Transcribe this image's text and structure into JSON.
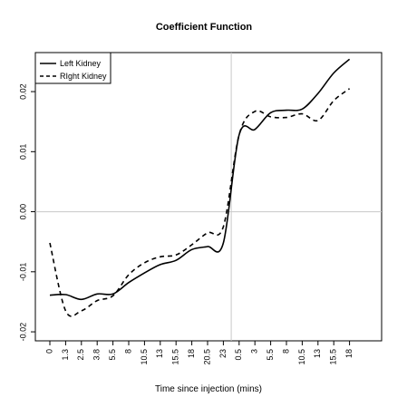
{
  "chart_data": {
    "type": "line",
    "title": "Coefficient Function",
    "xlabel": "Time since injection (mins)",
    "ylabel": "",
    "x_tick_labels": [
      "0",
      "1.3",
      "2.5",
      "3.8",
      "5.5",
      "8",
      "10.5",
      "13",
      "15.5",
      "18",
      "20.5",
      "23",
      "0.5",
      "3",
      "5.5",
      "8",
      "10.5",
      "13",
      "15.5",
      "18"
    ],
    "y_ticks": [
      -0.02,
      -0.01,
      0.0,
      0.01,
      0.02
    ],
    "y_tick_labels": [
      "-0.02",
      "-0.01",
      "0.00",
      "0.01",
      "0.02"
    ],
    "ylim": [
      -0.0215,
      0.0265
    ],
    "grid": false,
    "reference_lines": {
      "horizontal_y": 0.0,
      "vertical_after_tick_index": 11.5
    },
    "legend": {
      "position": "top-left"
    },
    "series": [
      {
        "name": "Left Kidney",
        "style": "solid",
        "values": [
          -0.0139,
          -0.0138,
          -0.0146,
          -0.0137,
          -0.0137,
          -0.0118,
          -0.0102,
          -0.0088,
          -0.0081,
          -0.0063,
          -0.0058,
          -0.0052,
          0.0128,
          0.0137,
          0.0165,
          0.0169,
          0.0171,
          0.0197,
          0.0231,
          0.0254
        ]
      },
      {
        "name": "RIght Kidney",
        "style": "dashed",
        "values": [
          -0.0052,
          -0.0165,
          -0.0165,
          -0.0148,
          -0.014,
          -0.0105,
          -0.0085,
          -0.0075,
          -0.0072,
          -0.0055,
          -0.0035,
          -0.0025,
          0.0128,
          0.0167,
          0.0158,
          0.0157,
          0.0163,
          0.0152,
          0.0185,
          0.0205
        ]
      }
    ]
  }
}
